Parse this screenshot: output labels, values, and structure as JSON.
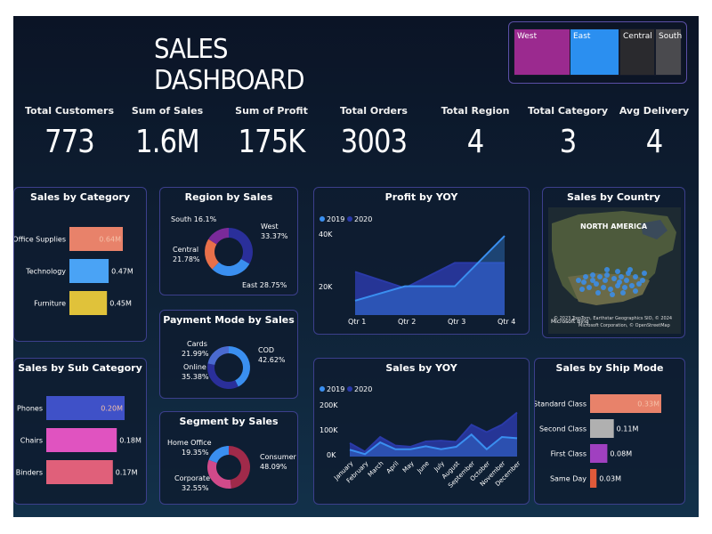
{
  "title": "SALES DASHBOARD",
  "region_tiles": [
    {
      "label": "West",
      "color": "#9b2a8f"
    },
    {
      "label": "East",
      "color": "#2b8ff0"
    },
    {
      "label": "Central",
      "color": "#2a2a2e"
    },
    {
      "label": "South",
      "color": "#4a4a4e"
    }
  ],
  "kpis": [
    {
      "label": "Total Customers",
      "value": "773"
    },
    {
      "label": "Sum of Sales",
      "value": "1.6M"
    },
    {
      "label": "Sum of Profit",
      "value": "175K"
    },
    {
      "label": "Total Orders",
      "value": "3003"
    },
    {
      "label": "Total Region",
      "value": "4"
    },
    {
      "label": "Total Category",
      "value": "3"
    },
    {
      "label": "Avg Delivery",
      "value": "4"
    }
  ],
  "panels": {
    "sales_by_category": {
      "title": "Sales by Category",
      "items": [
        {
          "label": "Office Supplies",
          "value": "0.64M",
          "color": "#e8826a"
        },
        {
          "label": "Technology",
          "value": "0.47M",
          "color": "#4aa3f5"
        },
        {
          "label": "Furniture",
          "value": "0.45M",
          "color": "#e0c23a"
        }
      ]
    },
    "sales_by_sub_category": {
      "title": "Sales by Sub Category",
      "items": [
        {
          "label": "Phones",
          "value": "0.20M",
          "color": "#3f51c8"
        },
        {
          "label": "Chairs",
          "value": "0.18M",
          "color": "#e053c0"
        },
        {
          "label": "Binders",
          "value": "0.17M",
          "color": "#e0607a"
        }
      ]
    },
    "region_by_sales": {
      "title": "Region by Sales",
      "labels": {
        "south": "South 16.1%",
        "west": "West",
        "west_pct": "33.37%",
        "central": "Central",
        "central_pct": "21.78%",
        "east": "East 28.75%"
      }
    },
    "payment_mode": {
      "title": "Payment Mode by Sales",
      "labels": {
        "cards": "Cards",
        "cards_pct": "21.99%",
        "online": "Online",
        "online_pct": "35.38%",
        "cod": "COD",
        "cod_pct": "42.62%"
      }
    },
    "segment": {
      "title": "Segment by Sales",
      "labels": {
        "home": "Home Office",
        "home_pct": "19.35%",
        "corporate": "Corporate",
        "corporate_pct": "32.55%",
        "consumer": "Consumer",
        "consumer_pct": "48.09%"
      }
    },
    "profit_yoy": {
      "title": "Profit by YOY",
      "legend": [
        "2019",
        "2020"
      ],
      "y_ticks": [
        "40K",
        "20K"
      ],
      "x_ticks": [
        "Qtr 1",
        "Qtr 2",
        "Qtr 3",
        "Qtr 4"
      ]
    },
    "sales_yoy": {
      "title": "Sales by YOY",
      "legend": [
        "2019",
        "2020"
      ],
      "y_ticks": [
        "200K",
        "100K",
        "0K"
      ],
      "x_ticks": [
        "January",
        "February",
        "March",
        "April",
        "May",
        "June",
        "July",
        "August",
        "September",
        "October",
        "November",
        "December"
      ]
    },
    "sales_by_country": {
      "title": "Sales by Country",
      "map_label": "NORTH AMERICA",
      "credit1": "© 2023 TomTom, Earthstar Geographics SIO, © 2024",
      "credit2": "Microsoft Corporation, © OpenStreetMap",
      "bing": "Microsoft Bing"
    },
    "ship_mode": {
      "title": "Sales by Ship Mode",
      "items": [
        {
          "label": "Standard Class",
          "value": "0.33M",
          "color": "#e8826a"
        },
        {
          "label": "Second Class",
          "value": "0.11M",
          "color": "#b0b0b0"
        },
        {
          "label": "First Class",
          "value": "0.08M",
          "color": "#a040c0"
        },
        {
          "label": "Same Day",
          "value": "0.03M",
          "color": "#e05a3a"
        }
      ]
    }
  },
  "chart_data": [
    {
      "type": "bar",
      "title": "Sales by Category",
      "categories": [
        "Office Supplies",
        "Technology",
        "Furniture"
      ],
      "values": [
        0.64,
        0.47,
        0.45
      ]
    },
    {
      "type": "bar",
      "title": "Sales by Sub Category",
      "categories": [
        "Phones",
        "Chairs",
        "Binders"
      ],
      "values": [
        0.2,
        0.18,
        0.17
      ]
    },
    {
      "type": "pie",
      "title": "Region by Sales",
      "categories": [
        "West",
        "East",
        "Central",
        "South"
      ],
      "values": [
        33.37,
        28.75,
        21.78,
        16.1
      ]
    },
    {
      "type": "pie",
      "title": "Payment Mode by Sales",
      "categories": [
        "COD",
        "Online",
        "Cards"
      ],
      "values": [
        42.62,
        35.38,
        21.99
      ]
    },
    {
      "type": "pie",
      "title": "Segment by Sales",
      "categories": [
        "Consumer",
        "Corporate",
        "Home Office"
      ],
      "values": [
        48.09,
        32.55,
        19.35
      ]
    },
    {
      "type": "area",
      "title": "Profit by YOY",
      "categories": [
        "Qtr 1",
        "Qtr 2",
        "Qtr 3",
        "Qtr 4"
      ],
      "series": [
        {
          "name": "2019",
          "values": [
            8000,
            16000,
            16000,
            44000
          ]
        },
        {
          "name": "2020",
          "values": [
            24000,
            15000,
            29000,
            29000
          ]
        }
      ]
    },
    {
      "type": "area",
      "title": "Sales by YOY",
      "categories": [
        "January",
        "February",
        "March",
        "April",
        "May",
        "June",
        "July",
        "August",
        "September",
        "October",
        "November",
        "December"
      ],
      "series": [
        {
          "name": "2019",
          "values": [
            28000,
            10000,
            58000,
            30000,
            30000,
            42000,
            30000,
            40000,
            90000,
            30000,
            80000,
            75000
          ]
        },
        {
          "name": "2020",
          "values": [
            55000,
            20000,
            80000,
            45000,
            40000,
            62000,
            65000,
            60000,
            130000,
            100000,
            130000,
            180000
          ]
        }
      ]
    },
    {
      "type": "bar",
      "title": "Sales by Ship Mode",
      "categories": [
        "Standard Class",
        "Second Class",
        "First Class",
        "Same Day"
      ],
      "values": [
        0.33,
        0.11,
        0.08,
        0.03
      ]
    }
  ]
}
